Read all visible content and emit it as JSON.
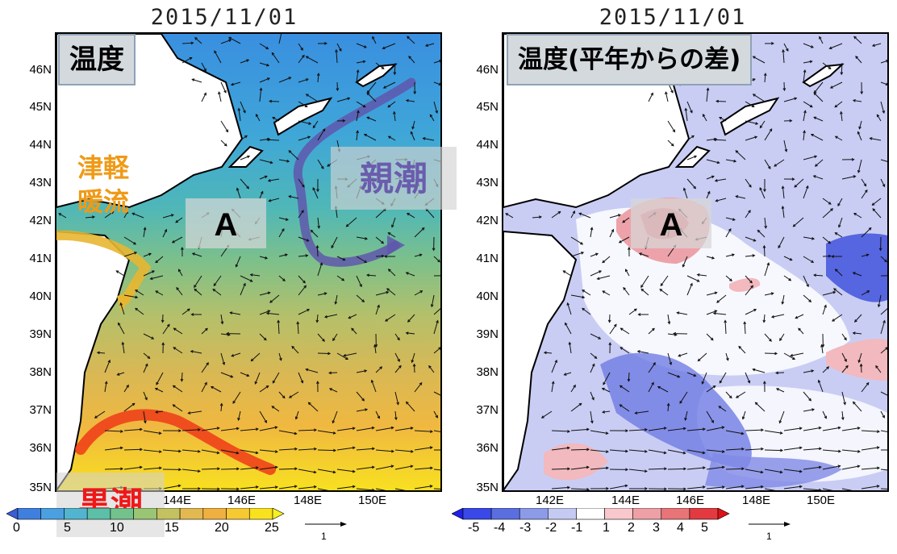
{
  "left": {
    "date": "2015/11/01",
    "panel_title": "温度",
    "region_label": "A",
    "currents": {
      "oyashio": "親潮",
      "kuroshio": "黒潮",
      "tsugaru_line1": "津軽",
      "tsugaru_line2": "暖流"
    },
    "latitudes": [
      "46N",
      "45N",
      "44N",
      "43N",
      "42N",
      "41N",
      "40N",
      "39N",
      "38N",
      "37N",
      "36N",
      "35N"
    ],
    "longitudes": [
      "144E",
      "146E",
      "148E",
      "150E"
    ],
    "colorbar": {
      "labels": [
        "0",
        "5",
        "10",
        "15",
        "20",
        "25"
      ],
      "colors": [
        "#3a5fd6",
        "#3f7fde",
        "#4aa0e0",
        "#52b5cf",
        "#5cbfa8",
        "#73c28c",
        "#9ac574",
        "#c4c260",
        "#e2b850",
        "#f0b040",
        "#f6c832",
        "#f8e21e",
        "#f6f020"
      ]
    },
    "vector_scale": "1"
  },
  "right": {
    "date": "2015/11/01",
    "panel_title": "温度(平年からの差)",
    "region_label": "A",
    "latitudes": [
      "46N",
      "45N",
      "44N",
      "43N",
      "42N",
      "41N",
      "40N",
      "39N",
      "38N",
      "37N",
      "36N",
      "35N"
    ],
    "longitudes": [
      "142E",
      "144E",
      "146E",
      "148E",
      "150E"
    ],
    "colorbar": {
      "labels": [
        "-5",
        "-4",
        "-3",
        "-2",
        "-1",
        "1",
        "2",
        "3",
        "4",
        "5"
      ],
      "colors": [
        "#2020e8",
        "#3a48e8",
        "#5a6ee0",
        "#8c9ae8",
        "#c4caf2",
        "#ffffff",
        "#f8c8cc",
        "#eea0a6",
        "#e87478",
        "#e23a40",
        "#e01018"
      ]
    },
    "vector_scale": "1"
  }
}
